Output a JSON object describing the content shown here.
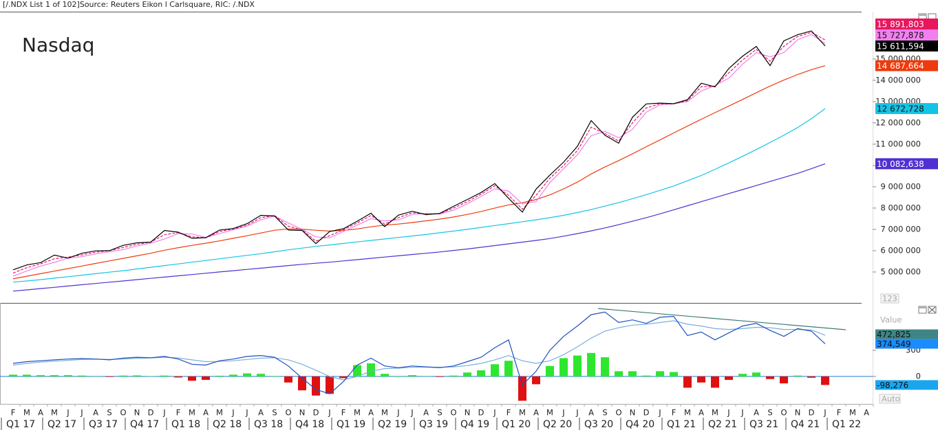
{
  "header": {
    "source": "[/.NDX List 1 of 102]Source: Reuters Eikon l Carlsquare, RIC: /.NDX"
  },
  "controls": {
    "value": "Value",
    "auto": "Auto",
    "digits": "123"
  },
  "chart_data": [
    {
      "type": "line",
      "title": "Nasdaq",
      "categories": [
        "F",
        "M",
        "A",
        "M",
        "J",
        "J",
        "A",
        "S",
        "O",
        "N",
        "D",
        "J",
        "F",
        "M",
        "A",
        "M",
        "J",
        "J",
        "A",
        "S",
        "O",
        "N",
        "D",
        "J",
        "F",
        "M",
        "A",
        "M",
        "J",
        "J",
        "A",
        "S",
        "O",
        "N",
        "D",
        "J",
        "F",
        "M",
        "A",
        "M",
        "J",
        "J",
        "A",
        "S",
        "O",
        "N",
        "D",
        "J",
        "F",
        "M",
        "A",
        "M",
        "J",
        "J",
        "A",
        "S",
        "O",
        "N",
        "D",
        "J",
        "F",
        "M",
        "A"
      ],
      "quarters": [
        "Q1 17",
        "Q2 17",
        "Q3 17",
        "Q4 17",
        "Q1 18",
        "Q2 18",
        "Q3 18",
        "Q4 18",
        "Q1 19",
        "Q2 19",
        "Q3 19",
        "Q4 19",
        "Q1 20",
        "Q2 20",
        "Q3 20",
        "Q4 20",
        "Q1 21",
        "Q2 21",
        "Q3 21",
        "Q4 21",
        "Q1 22"
      ],
      "ylim": [
        3740000,
        17190000
      ],
      "yticks": [
        {
          "value": 5000000,
          "label": "5 000 000"
        },
        {
          "value": 6000000,
          "label": "6 000 000"
        },
        {
          "value": 7000000,
          "label": "7 000 000"
        },
        {
          "value": 8000000,
          "label": "8 000 000"
        },
        {
          "value": 9000000,
          "label": "9 000 000"
        },
        {
          "value": 10000000,
          "label": "10 000 000"
        },
        {
          "value": 11000000,
          "label": "11 000 000"
        },
        {
          "value": 12000000,
          "label": "12 000 000"
        },
        {
          "value": 13000000,
          "label": "13 000 000"
        },
        {
          "value": 14000000,
          "label": "14 000 000"
        },
        {
          "value": 15000000,
          "label": "15 000 000"
        }
      ],
      "series": [
        {
          "color": "#5030d0",
          "end_label": "10 082,638",
          "values": [
            4100000,
            4160000,
            4220000,
            4280000,
            4340000,
            4400000,
            4460000,
            4520000,
            4580000,
            4640000,
            4700000,
            4760000,
            4820000,
            4880000,
            4940000,
            5000000,
            5060000,
            5120000,
            5180000,
            5240000,
            5300000,
            5360000,
            5410000,
            5460000,
            5520000,
            5580000,
            5640000,
            5700000,
            5760000,
            5820000,
            5880000,
            5940000,
            6010000,
            6080000,
            6160000,
            6240000,
            6320000,
            6400000,
            6480000,
            6570000,
            6680000,
            6800000,
            6930000,
            7070000,
            7220000,
            7380000,
            7550000,
            7730000,
            7920000,
            8110000,
            8300000,
            8490000,
            8680000,
            8870000,
            9060000,
            9250000,
            9440000,
            9630000,
            9850000,
            10082638,
            null,
            null,
            null
          ]
        },
        {
          "color": "#14c4e6",
          "end_label": "12 672,728",
          "values": [
            4520000,
            4580000,
            4640000,
            4710000,
            4780000,
            4850000,
            4920000,
            4990000,
            5060000,
            5140000,
            5220000,
            5300000,
            5380000,
            5460000,
            5540000,
            5620000,
            5700000,
            5780000,
            5860000,
            5950000,
            6040000,
            6120000,
            6200000,
            6270000,
            6340000,
            6410000,
            6480000,
            6550000,
            6620000,
            6690000,
            6760000,
            6840000,
            6920000,
            7000000,
            7090000,
            7180000,
            7270000,
            7360000,
            7450000,
            7550000,
            7660000,
            7790000,
            7930000,
            8090000,
            8260000,
            8440000,
            8630000,
            8830000,
            9040000,
            9280000,
            9530000,
            9820000,
            10120000,
            10430000,
            10750000,
            11080000,
            11420000,
            11780000,
            12200000,
            12672728,
            null,
            null,
            null
          ]
        },
        {
          "color": "#ee3a0c",
          "end_label": "14 687,664",
          "values": [
            4680000,
            4800000,
            4920000,
            5040000,
            5160000,
            5280000,
            5400000,
            5520000,
            5640000,
            5760000,
            5880000,
            6020000,
            6140000,
            6250000,
            6350000,
            6460000,
            6580000,
            6700000,
            6830000,
            6960000,
            7020000,
            7010000,
            6960000,
            6920000,
            6950000,
            7020000,
            7120000,
            7200000,
            7250000,
            7320000,
            7400000,
            7480000,
            7580000,
            7700000,
            7840000,
            8000000,
            8150000,
            8250000,
            8400000,
            8620000,
            8900000,
            9220000,
            9600000,
            9930000,
            10230000,
            10550000,
            10880000,
            11200000,
            11530000,
            11850000,
            12170000,
            12480000,
            12790000,
            13100000,
            13420000,
            13730000,
            14010000,
            14270000,
            14500000,
            14687664,
            null,
            null,
            null
          ]
        },
        {
          "color": "#f27ff0",
          "end_label": "15 727,878",
          "values": [
            4800000,
            5050000,
            5280000,
            5450000,
            5650000,
            5720000,
            5850000,
            5950000,
            6050000,
            6220000,
            6350000,
            6550000,
            6800000,
            6780000,
            6620000,
            6800000,
            6980000,
            7150000,
            7450000,
            7620000,
            7300000,
            7000000,
            6650000,
            6600000,
            6900000,
            7200000,
            7500000,
            7400000,
            7450000,
            7700000,
            7750000,
            7720000,
            7900000,
            8200000,
            8550000,
            8900000,
            8800000,
            8200000,
            8300000,
            9200000,
            9850000,
            10500000,
            11400000,
            11600000,
            11300000,
            11700000,
            12500000,
            12850000,
            12900000,
            13000000,
            13500000,
            13750000,
            14100000,
            14750000,
            15300000,
            15100000,
            15300000,
            15900000,
            16150000,
            15727878,
            null,
            null,
            null
          ]
        },
        {
          "color": "#e8175d",
          "dash": true,
          "end_label": "15 891,803",
          "values": [
            4950000,
            5200000,
            5380000,
            5620000,
            5700000,
            5800000,
            5930000,
            6000000,
            6150000,
            6300000,
            6400000,
            6750000,
            6850000,
            6650000,
            6600000,
            6900000,
            7020000,
            7200000,
            7550000,
            7650000,
            7150000,
            6980000,
            6450000,
            6700000,
            6980000,
            7300000,
            7650000,
            7250000,
            7550000,
            7780000,
            7720000,
            7740000,
            8000000,
            8300000,
            8650000,
            9050000,
            8600000,
            7950000,
            8600000,
            9400000,
            10000000,
            10700000,
            11800000,
            11500000,
            11150000,
            12000000,
            12700000,
            12900000,
            12900000,
            13050000,
            13700000,
            13720000,
            14350000,
            14950000,
            15450000,
            14900000,
            15600000,
            16050000,
            16250000,
            15891803,
            null,
            null,
            null
          ]
        },
        {
          "color": "#000000",
          "end_label": "15 611,594",
          "values": [
            5100000,
            5330000,
            5440000,
            5790000,
            5650000,
            5880000,
            5990000,
            6000000,
            6250000,
            6370000,
            6400000,
            6950000,
            6870000,
            6580000,
            6610000,
            6970000,
            7040000,
            7270000,
            7660000,
            7630000,
            6970000,
            6950000,
            6330000,
            6900000,
            7030000,
            7380000,
            7760000,
            7130000,
            7670000,
            7850000,
            7690000,
            7750000,
            8080000,
            8400000,
            8730000,
            9150000,
            8460000,
            7810000,
            8890000,
            9550000,
            10160000,
            10900000,
            12110000,
            11420000,
            11050000,
            12260000,
            12890000,
            12930000,
            12900000,
            13090000,
            13860000,
            13690000,
            14550000,
            15130000,
            15590000,
            14690000,
            15850000,
            16140000,
            16320000,
            15611594,
            null,
            null,
            null
          ]
        }
      ]
    },
    {
      "type": "line",
      "ylim": [
        -316,
        845
      ],
      "yticks": [
        0,
        300
      ],
      "series": [
        {
          "type": "bar",
          "colors": {
            "positive": "#2ee62e",
            "negative": "#e01010"
          },
          "label_color": "#1aa6ee",
          "end_label": "-98,276",
          "values": [
            20,
            20,
            15,
            15,
            15,
            10,
            2,
            -6,
            10,
            12,
            3,
            10,
            -12,
            -50,
            -40,
            8,
            20,
            35,
            30,
            5,
            -70,
            -160,
            -220,
            -200,
            -20,
            130,
            150,
            30,
            5,
            15,
            2,
            -6,
            10,
            45,
            70,
            140,
            180,
            -280,
            -90,
            120,
            210,
            240,
            270,
            220,
            60,
            60,
            10,
            60,
            50,
            -130,
            -70,
            -130,
            -40,
            30,
            45,
            -30,
            -80,
            10,
            -15,
            -98.276,
            null,
            null,
            null
          ]
        },
        {
          "color": "#7aaede",
          "label_color": "#3f8585",
          "end_label": "472,825",
          "values": [
            130,
            150,
            165,
            175,
            185,
            195,
            198,
            196,
            200,
            208,
            212,
            220,
            212,
            190,
            170,
            172,
            180,
            195,
            210,
            215,
            190,
            140,
            70,
            0,
            -40,
            0,
            60,
            90,
            95,
            105,
            108,
            106,
            110,
            125,
            150,
            190,
            240,
            180,
            150,
            180,
            250,
            340,
            440,
            520,
            560,
            590,
            600,
            620,
            640,
            600,
            580,
            550,
            540,
            550,
            565,
            560,
            540,
            540,
            535,
            472.825,
            null,
            null,
            null
          ]
        },
        {
          "color": "#1f4fbf",
          "label_color": "#1a8cff",
          "end_label": "374,549",
          "values": [
            150,
            170,
            180,
            190,
            200,
            205,
            200,
            190,
            210,
            220,
            215,
            230,
            200,
            140,
            130,
            180,
            200,
            230,
            240,
            220,
            120,
            -20,
            -150,
            -200,
            -60,
            130,
            210,
            120,
            100,
            120,
            110,
            100,
            120,
            170,
            220,
            330,
            420,
            -100,
            60,
            300,
            460,
            580,
            710,
            740,
            620,
            650,
            610,
            680,
            690,
            470,
            510,
            420,
            500,
            580,
            610,
            530,
            460,
            550,
            520,
            374.549,
            null,
            null,
            null
          ]
        }
      ],
      "trendline": {
        "x": [
          42.5,
          60.5
        ],
        "values": [
          781,
          537
        ],
        "color": "#3d7a72"
      }
    }
  ]
}
